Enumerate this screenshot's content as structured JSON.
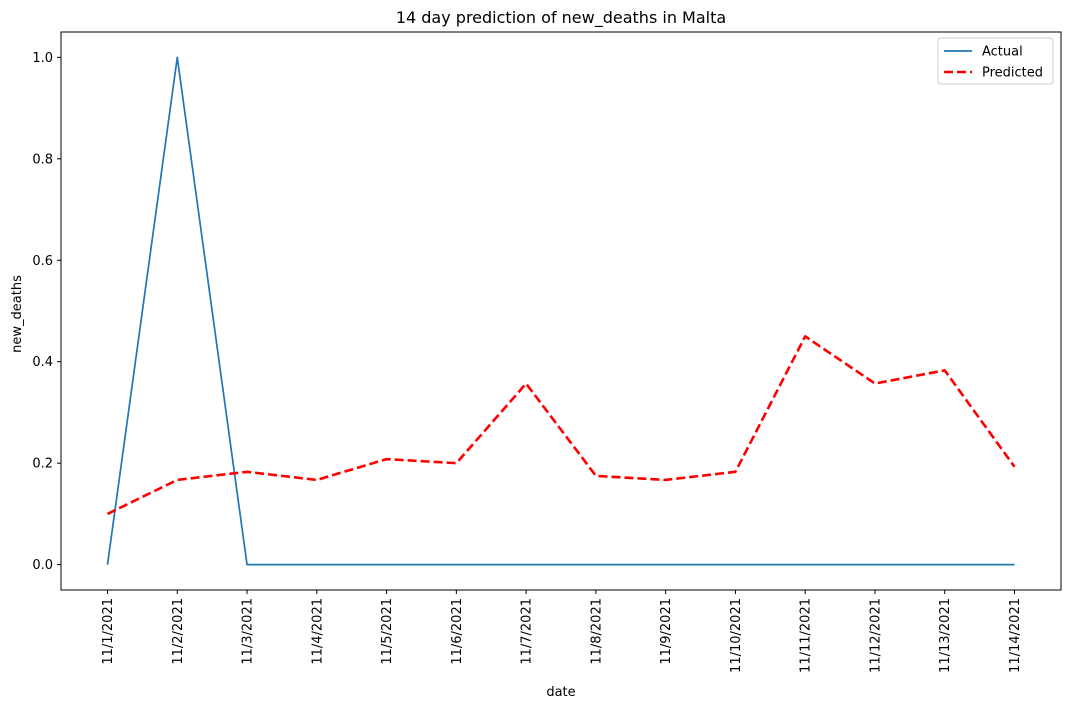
{
  "chart_data": {
    "type": "line",
    "title": "14 day prediction of new_deaths in Malta",
    "xlabel": "date",
    "ylabel": "new_deaths",
    "categories": [
      "11/1/2021",
      "11/2/2021",
      "11/3/2021",
      "11/4/2021",
      "11/5/2021",
      "11/6/2021",
      "11/7/2021",
      "11/8/2021",
      "11/9/2021",
      "11/10/2021",
      "11/11/2021",
      "11/12/2021",
      "11/13/2021",
      "11/14/2021"
    ],
    "ylim": [
      -0.05,
      1.05
    ],
    "yticks": [
      0.0,
      0.2,
      0.4,
      0.6,
      0.8,
      1.0
    ],
    "ytick_labels": [
      "0.0",
      "0.2",
      "0.4",
      "0.6",
      "0.8",
      "1.0"
    ],
    "grid": false,
    "legend_position": "top-right",
    "series": [
      {
        "name": "Actual",
        "color": "#1f77b4",
        "style": "solid",
        "values": [
          0,
          1,
          0,
          0,
          0,
          0,
          0,
          0,
          0,
          0,
          0,
          0,
          0,
          0
        ]
      },
      {
        "name": "Predicted",
        "color": "#ff0000",
        "style": "dashed",
        "values": [
          0.1,
          0.167,
          0.183,
          0.167,
          0.208,
          0.2,
          0.357,
          0.175,
          0.167,
          0.183,
          0.45,
          0.357,
          0.383,
          0.193
        ]
      }
    ]
  }
}
